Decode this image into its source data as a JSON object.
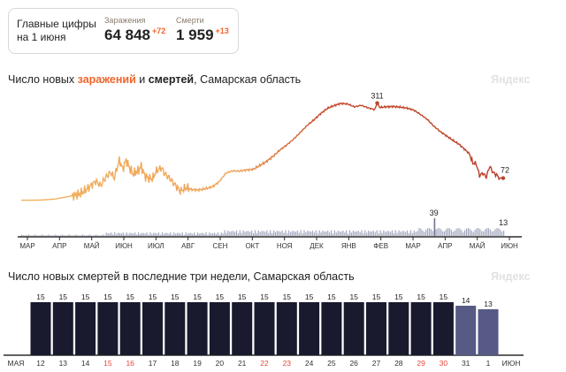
{
  "summary": {
    "heading": "Главные цифры на 1 июня",
    "cases_label": "Заражения",
    "cases_value": "64 848",
    "cases_delta": "+72",
    "deaths_label": "Смерти",
    "deaths_value": "1 959",
    "deaths_delta": "+13"
  },
  "chart1_title": {
    "prefix": "Число новых ",
    "cases_word": "заражений",
    "mid": " и ",
    "deaths_word": "смертей",
    "suffix": ", Самарская область"
  },
  "chart2_title": "Число новых смертей в последние три недели, Самарская область",
  "watermark": "Яндекс",
  "colors": {
    "cases_early": "#f2b25c",
    "cases_late": "#c8492a",
    "deaths_bars": "#a3a8bd",
    "dark_bar": "#191a2e",
    "light_bar": "#565a84",
    "weekend_red": "#e8463b",
    "accent_orange": "#f0642a"
  },
  "chart_data": [
    {
      "type": "line",
      "x_axis_labels": [
        "МАР",
        "АПР",
        "МАЙ",
        "ИЮН",
        "ИЮЛ",
        "АВГ",
        "СЕН",
        "ОКТ",
        "НОЯ",
        "ДЕК",
        "ЯНВ",
        "ФЕВ",
        "МАР",
        "АПР",
        "МАЙ",
        "ИЮН"
      ],
      "series": [
        {
          "kind": "cases",
          "anchors": [
            [
              0,
              1
            ],
            [
              11,
              1
            ],
            [
              26,
              2
            ],
            [
              40,
              5
            ],
            [
              50,
              10
            ],
            [
              60,
              15
            ],
            [
              70,
              22
            ],
            [
              80,
              42
            ],
            [
              88,
              62
            ],
            [
              94,
              48
            ],
            [
              100,
              75
            ],
            [
              106,
              90
            ],
            [
              110,
              72
            ],
            [
              116,
              130
            ],
            [
              120,
              100
            ],
            [
              124,
              130
            ],
            [
              128,
              105
            ],
            [
              132,
              85
            ],
            [
              138,
              95
            ],
            [
              142,
              110
            ],
            [
              146,
              80
            ],
            [
              150,
              72
            ],
            [
              155,
              70
            ],
            [
              160,
              95
            ],
            [
              166,
              105
            ],
            [
              170,
              85
            ],
            [
              176,
              70
            ],
            [
              182,
              50
            ],
            [
              188,
              30
            ],
            [
              195,
              42
            ],
            [
              202,
              35
            ],
            [
              210,
              34
            ],
            [
              218,
              38
            ],
            [
              226,
              44
            ],
            [
              234,
              60
            ],
            [
              242,
              88
            ],
            [
              250,
              95
            ],
            [
              258,
              94
            ],
            [
              266,
              98
            ],
            [
              274,
              100
            ],
            [
              282,
              112
            ],
            [
              290,
              125
            ],
            [
              298,
              142
            ],
            [
              306,
              162
            ],
            [
              314,
              178
            ],
            [
              322,
              196
            ],
            [
              330,
              218
            ],
            [
              338,
              240
            ],
            [
              346,
              258
            ],
            [
              354,
              278
            ],
            [
              362,
              295
            ],
            [
              370,
              304
            ],
            [
              378,
              311
            ],
            [
              386,
              309
            ],
            [
              394,
              300
            ],
            [
              402,
              305
            ],
            [
              410,
              297
            ],
            [
              418,
              291
            ],
            [
              421,
              312
            ],
            [
              424,
              298
            ],
            [
              432,
              300
            ],
            [
              440,
              301
            ],
            [
              448,
              299
            ],
            [
              456,
              296
            ],
            [
              464,
              290
            ],
            [
              472,
              276
            ],
            [
              480,
              260
            ],
            [
              488,
              238
            ],
            [
              496,
              220
            ],
            [
              504,
              205
            ],
            [
              512,
              190
            ],
            [
              518,
              180
            ],
            [
              524,
              165
            ],
            [
              530,
              150
            ],
            [
              534,
              120
            ],
            [
              538,
              118
            ],
            [
              542,
              80
            ],
            [
              546,
              88
            ],
            [
              550,
              75
            ],
            [
              554,
              110
            ],
            [
              558,
              90
            ],
            [
              562,
              82
            ],
            [
              566,
              72
            ],
            [
              570,
              72
            ]
          ],
          "peak_label": "311",
          "end_label": "72"
        },
        {
          "kind": "deaths",
          "series_peak_label": "39",
          "end_label": "13"
        }
      ]
    },
    {
      "type": "bar",
      "categories": [
        "12",
        "13",
        "14",
        "15",
        "16",
        "17",
        "18",
        "19",
        "20",
        "21",
        "22",
        "23",
        "24",
        "25",
        "26",
        "27",
        "28",
        "29",
        "30",
        "31",
        "1"
      ],
      "values": [
        15,
        15,
        15,
        15,
        15,
        15,
        15,
        15,
        15,
        15,
        15,
        15,
        15,
        15,
        15,
        15,
        15,
        15,
        15,
        14,
        13
      ],
      "weekend_days": [
        "15",
        "16",
        "22",
        "23",
        "29",
        "30"
      ],
      "month_labels": [
        "МАЯ",
        "ИЮН"
      ]
    }
  ]
}
